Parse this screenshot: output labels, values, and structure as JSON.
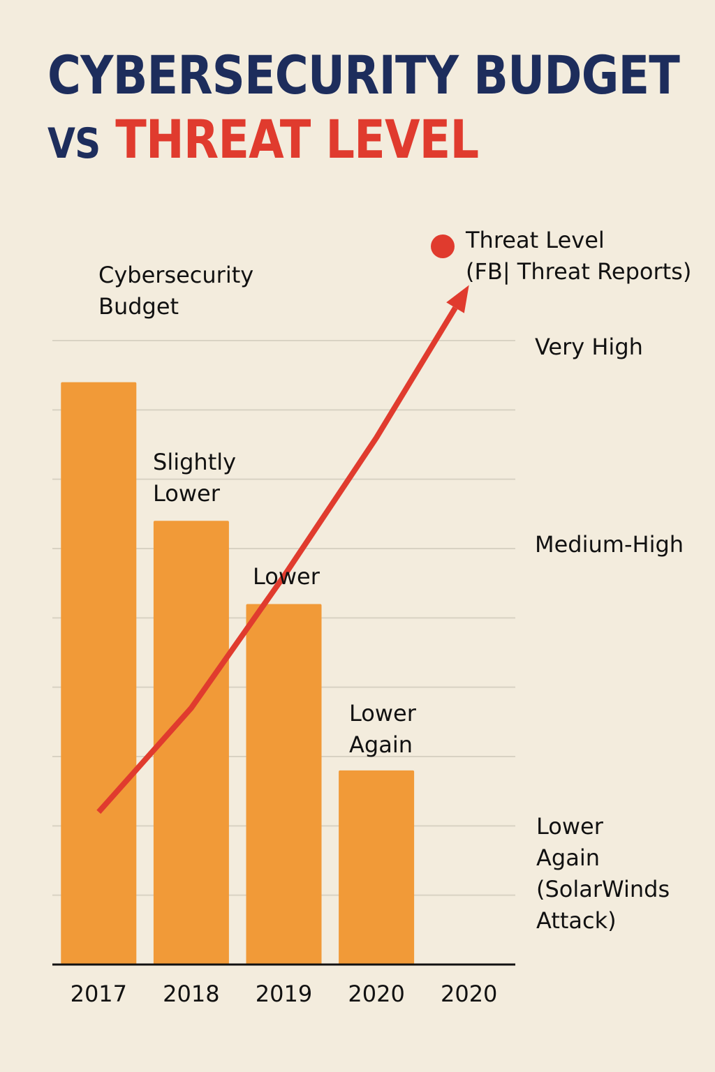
{
  "title": {
    "line1": "CYBERSECURITY BUDGET",
    "vs": "VS",
    "threat": "THREAT LEVEL"
  },
  "colors": {
    "background": "#f3ecdd",
    "title_navy": "#1d2d5c",
    "accent_red": "#e03b2e",
    "bar_orange": "#f19a38",
    "grid": "#d8d2c3"
  },
  "chart_data": {
    "type": "bar",
    "categories": [
      "2017",
      "2018",
      "2019",
      "2020",
      "2020"
    ],
    "series": [
      {
        "name": "Cybersecurity\nBudget",
        "type": "bar",
        "values": [
          8.4,
          6.4,
          5.2,
          2.8,
          null
        ],
        "value_labels": [
          "",
          "Slightly\nLower",
          "Lower",
          "Lower\nAgain",
          ""
        ]
      },
      {
        "name": "Threat Level\n(FB| Threat Reports)",
        "type": "line",
        "values": [
          2.2,
          3.7,
          5.6,
          7.6,
          9.8
        ]
      }
    ],
    "y_levels_right": [
      "Very High",
      "Medium-High",
      "Lower\nAgain\n(SolarWinds\nAttack)"
    ],
    "ylim": [
      0,
      9
    ],
    "grid": true,
    "legend_position": "top-right"
  },
  "icons": {
    "legend_marker": "red-dot-icon",
    "trend_arrow": "arrowhead-icon"
  }
}
